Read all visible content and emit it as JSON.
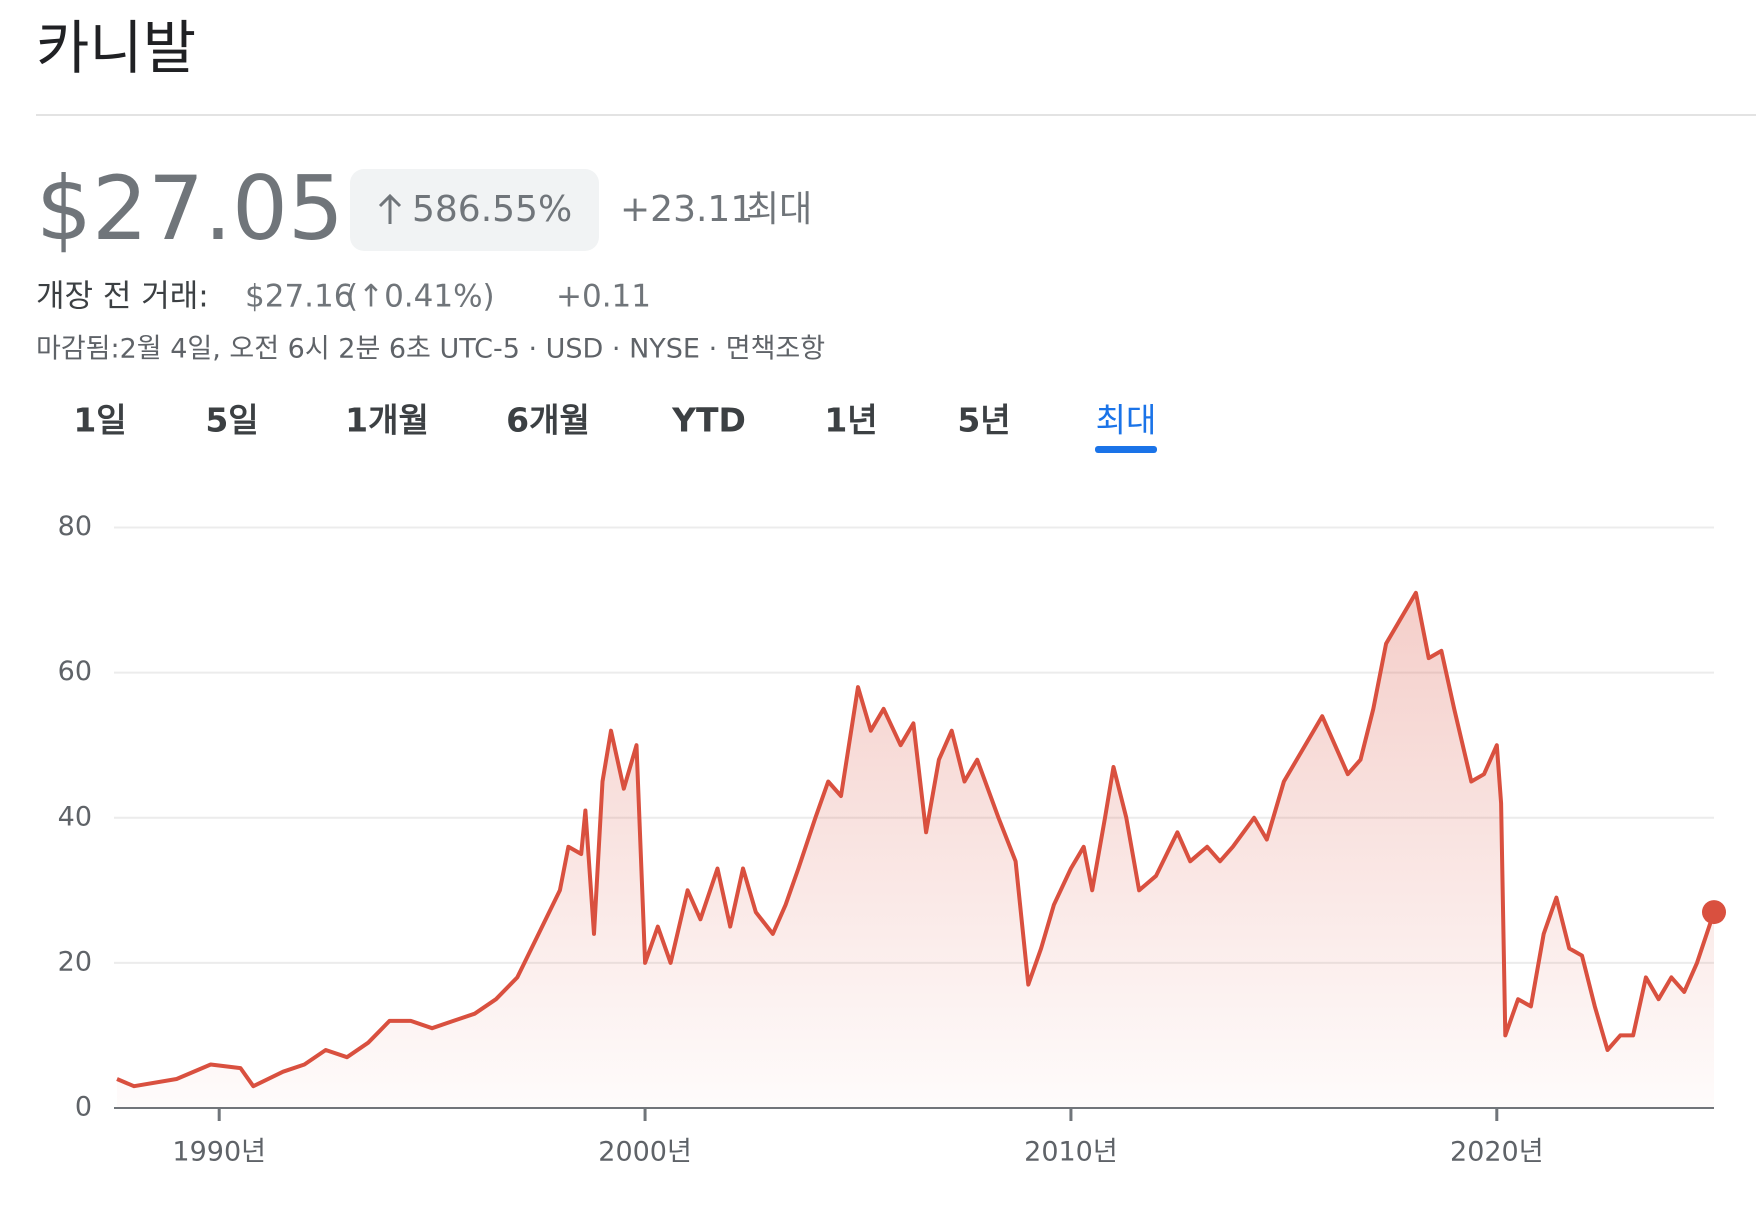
{
  "header": {
    "title": "카니발",
    "price": "$27.05",
    "change_pct": "586.55%",
    "change_abs": "+23.11",
    "period": "최대",
    "premarket_label": "개장 전 거래:",
    "premarket_price": "$27.16",
    "premarket_pct": "(↑0.41%)",
    "premarket_abs": "+0.11",
    "meta": "마감됨:2월 4일, 오전 6시 2분 6초 UTC-5 · USD · NYSE · 면책조항"
  },
  "tabs": [
    "1일",
    "5일",
    "1개월",
    "6개월",
    "YTD",
    "1년",
    "5년",
    "최대"
  ],
  "selected_tab": 7,
  "chart_data": {
    "type": "line",
    "color": "#d9503f",
    "x": [
      1987.6,
      1988,
      1989,
      1989.8,
      1990.5,
      1990.8,
      1991.5,
      1992,
      1992.5,
      1993,
      1993.5,
      1994,
      1994.5,
      1995,
      1995.5,
      1996,
      1996.5,
      1997,
      1997.5,
      1998,
      1998.2,
      1998.5,
      1998.6,
      1998.8,
      1999,
      1999.2,
      1999.5,
      1999.8,
      2000,
      2000.3,
      2000.6,
      2001,
      2001.3,
      2001.7,
      2002,
      2002.3,
      2002.6,
      2003,
      2003.3,
      2003.6,
      2004,
      2004.3,
      2004.6,
      2005,
      2005.3,
      2005.6,
      2006,
      2006.3,
      2006.6,
      2006.9,
      2007.2,
      2007.5,
      2007.8,
      2008.3,
      2008.7,
      2009,
      2009.3,
      2009.6,
      2010,
      2010.3,
      2010.5,
      2010.8,
      2011,
      2011.3,
      2011.6,
      2012,
      2012.5,
      2012.8,
      2013.2,
      2013.5,
      2013.8,
      2014.3,
      2014.6,
      2015,
      2015.5,
      2015.9,
      2016.2,
      2016.5,
      2016.8,
      2017.1,
      2017.4,
      2017.8,
      2018.1,
      2018.4,
      2018.7,
      2019,
      2019.4,
      2019.7,
      2020,
      2020.1,
      2020.2,
      2020.5,
      2020.8,
      2021.1,
      2021.4,
      2021.7,
      2022,
      2022.3,
      2022.6,
      2022.9,
      2023.2,
      2023.5,
      2023.8,
      2024.1,
      2024.4,
      2024.7,
      2025.1
    ],
    "values": [
      4,
      3,
      4,
      6,
      5.5,
      3,
      5,
      6,
      8,
      7,
      9,
      12,
      12,
      11,
      12,
      13,
      15,
      18,
      24,
      30,
      36,
      35,
      41,
      24,
      45,
      52,
      44,
      50,
      20,
      25,
      20,
      30,
      26,
      33,
      25,
      33,
      27,
      24,
      28,
      33,
      40,
      45,
      43,
      58,
      52,
      55,
      50,
      53,
      38,
      48,
      52,
      45,
      48,
      40,
      34,
      17,
      22,
      28,
      33,
      36,
      30,
      40,
      47,
      40,
      30,
      32,
      38,
      34,
      36,
      34,
      36,
      40,
      37,
      45,
      50,
      54,
      50,
      46,
      48,
      55,
      64,
      68,
      71,
      62,
      63,
      55,
      45,
      46,
      50,
      42,
      10,
      15,
      14,
      24,
      29,
      22,
      21,
      14,
      8,
      10,
      10,
      18,
      15,
      18,
      16,
      20,
      27
    ],
    "xlim": [
      1987.53,
      2025.1
    ],
    "ylim": [
      0,
      80
    ],
    "yticks": [
      0,
      20,
      40,
      60,
      80
    ],
    "xticks": [
      {
        "value": 1990,
        "label": "1990년"
      },
      {
        "value": 2000,
        "label": "2000년"
      },
      {
        "value": 2010,
        "label": "2010년"
      },
      {
        "value": 2020,
        "label": "2020년"
      }
    ],
    "grid": true
  }
}
